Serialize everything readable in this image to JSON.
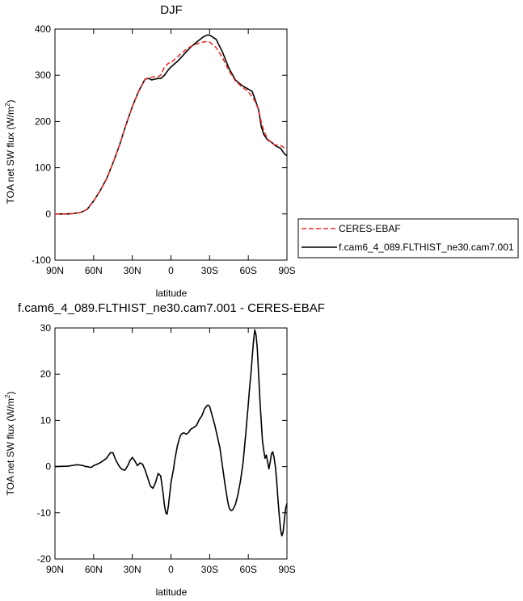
{
  "chart_data": [
    {
      "type": "line",
      "title": "DJF",
      "xlabel": "latitude",
      "ylabel": "TOA net SW flux (W/m",
      "ylabel_sup": "2",
      "ylabel_close": ")",
      "xlim": [
        90,
        -90
      ],
      "ylim": [
        -100,
        400
      ],
      "x_ticks": [
        {
          "value": 90,
          "label": "90N"
        },
        {
          "value": 60,
          "label": "60N"
        },
        {
          "value": 30,
          "label": "30N"
        },
        {
          "value": 0,
          "label": "0"
        },
        {
          "value": -30,
          "label": "30S"
        },
        {
          "value": -60,
          "label": "60S"
        },
        {
          "value": -90,
          "label": "90S"
        }
      ],
      "y_ticks": [
        {
          "value": -100,
          "label": "-100"
        },
        {
          "value": 0,
          "label": "0"
        },
        {
          "value": 100,
          "label": "100"
        },
        {
          "value": 200,
          "label": "200"
        },
        {
          "value": 300,
          "label": "300"
        },
        {
          "value": 400,
          "label": "400"
        }
      ],
      "legend": {
        "placement": "right"
      },
      "series": [
        {
          "name": "CERES-EBAF",
          "color": "#e8322e",
          "dashed": true,
          "x": [
            90,
            80,
            75,
            70,
            65,
            60,
            55,
            50,
            45,
            40,
            35,
            30,
            25,
            20,
            15,
            12,
            10,
            8,
            5,
            2,
            0,
            -5,
            -10,
            -15,
            -20,
            -25,
            -28,
            -30,
            -35,
            -40,
            -45,
            -50,
            -55,
            -60,
            -65,
            -68,
            -70,
            -72,
            -75,
            -80,
            -85,
            -90
          ],
          "y": [
            0,
            0,
            1,
            3,
            10,
            28,
            50,
            75,
            110,
            148,
            192,
            232,
            265,
            292,
            296,
            297,
            297,
            300,
            318,
            326,
            327,
            340,
            352,
            362,
            368,
            372,
            373,
            372,
            360,
            338,
            310,
            288,
            275,
            265,
            245,
            225,
            200,
            180,
            162,
            150,
            148,
            140
          ]
        },
        {
          "name": "f.cam6_4_089.FLTHIST_ne30.cam7.001",
          "color": "#000000",
          "dashed": false,
          "x": [
            90,
            80,
            75,
            70,
            65,
            60,
            55,
            50,
            45,
            40,
            35,
            30,
            25,
            20,
            17,
            15,
            12,
            10,
            8,
            5,
            2,
            0,
            -5,
            -10,
            -15,
            -20,
            -25,
            -28,
            -30,
            -35,
            -40,
            -45,
            -50,
            -55,
            -60,
            -63,
            -65,
            -68,
            -70,
            -72,
            -75,
            -78,
            -80,
            -82,
            -85,
            -88,
            -90
          ],
          "y": [
            0,
            0,
            1,
            3,
            10,
            28,
            50,
            76,
            110,
            148,
            192,
            232,
            266,
            292,
            293,
            290,
            292,
            293,
            293,
            300,
            312,
            318,
            330,
            345,
            360,
            372,
            383,
            387,
            387,
            378,
            350,
            315,
            290,
            278,
            270,
            265,
            250,
            225,
            190,
            172,
            160,
            155,
            150,
            146,
            142,
            130,
            126
          ]
        }
      ]
    },
    {
      "type": "line",
      "title": "f.cam6_4_089.FLTHIST_ne30.cam7.001 - CERES-EBAF",
      "xlabel": "latitude",
      "ylabel": "TOA net SW flux (W/m",
      "ylabel_sup": "2",
      "ylabel_close": ")",
      "xlim": [
        90,
        -90
      ],
      "ylim": [
        -20,
        30
      ],
      "x_ticks": [
        {
          "value": 90,
          "label": "90N"
        },
        {
          "value": 60,
          "label": "60N"
        },
        {
          "value": 30,
          "label": "30N"
        },
        {
          "value": 0,
          "label": "0"
        },
        {
          "value": -30,
          "label": "30S"
        },
        {
          "value": -60,
          "label": "60S"
        },
        {
          "value": -90,
          "label": "90S"
        }
      ],
      "y_ticks": [
        {
          "value": -20,
          "label": "-20"
        },
        {
          "value": -10,
          "label": "-10"
        },
        {
          "value": 0,
          "label": "0"
        },
        {
          "value": 10,
          "label": "10"
        },
        {
          "value": 20,
          "label": "20"
        },
        {
          "value": 30,
          "label": "30"
        }
      ],
      "series": [
        {
          "color": "#000000",
          "x": [
            90,
            80,
            75,
            73,
            70,
            68,
            66,
            65,
            62,
            60,
            55,
            50,
            47,
            45,
            43,
            40,
            38,
            36,
            35,
            33,
            32,
            30,
            28,
            26,
            24,
            22,
            20,
            18,
            16,
            14,
            12,
            10,
            8,
            6,
            5,
            4,
            3,
            2,
            1,
            0,
            -1,
            -2,
            -3,
            -4,
            -5,
            -6,
            -7,
            -8,
            -9,
            -10,
            -12,
            -14,
            -15,
            -16,
            -18,
            -20,
            -22,
            -24,
            -26,
            -28,
            -29,
            -30,
            -32,
            -34,
            -36,
            -38,
            -40,
            -42,
            -44,
            -45,
            -46,
            -47,
            -48,
            -50,
            -52,
            -54,
            -56,
            -58,
            -60,
            -61,
            -62,
            -63,
            -64,
            -65,
            -66,
            -67,
            -68,
            -69,
            -70,
            -71,
            -72,
            -73,
            -74,
            -75,
            -76,
            -77,
            -78,
            -79,
            -80,
            -81,
            -82,
            -83,
            -84,
            -85,
            -86,
            -87,
            -88,
            -89,
            -90
          ],
          "y": [
            0,
            0.1,
            0.3,
            0.4,
            0.3,
            0.2,
            0.0,
            0.0,
            -0.2,
            0.2,
            0.8,
            1.8,
            3.0,
            3.0,
            1.5,
            0.0,
            -0.6,
            -0.8,
            -0.5,
            0.5,
            1.2,
            2.0,
            1.2,
            0.2,
            0.8,
            0.5,
            -0.8,
            -2.5,
            -4.2,
            -4.7,
            -3.5,
            -1.5,
            -2.0,
            -6.0,
            -8.5,
            -10.0,
            -10.3,
            -8.5,
            -6.0,
            -3.5,
            -2.0,
            -0.5,
            1.5,
            3.0,
            4.5,
            5.5,
            6.5,
            7.0,
            7.2,
            7.3,
            7.0,
            7.5,
            8.0,
            8.2,
            8.5,
            9.0,
            10.2,
            11.0,
            12.5,
            13.2,
            13.3,
            13.0,
            11.0,
            9.0,
            6.5,
            4.0,
            0.0,
            -4.0,
            -7.5,
            -8.8,
            -9.4,
            -9.5,
            -9.3,
            -8.2,
            -6.0,
            -3.0,
            1.0,
            7.0,
            13.5,
            17.0,
            20.0,
            23.5,
            27.0,
            29.6,
            28.5,
            25.5,
            20.0,
            14.5,
            10.0,
            5.5,
            3.5,
            1.8,
            2.5,
            1.0,
            -0.5,
            1.0,
            2.8,
            3.2,
            2.0,
            0.0,
            -3.0,
            -7.0,
            -10.5,
            -13.5,
            -15.0,
            -14.2,
            -11.5,
            -9.0,
            -8.0
          ]
        }
      ]
    }
  ]
}
